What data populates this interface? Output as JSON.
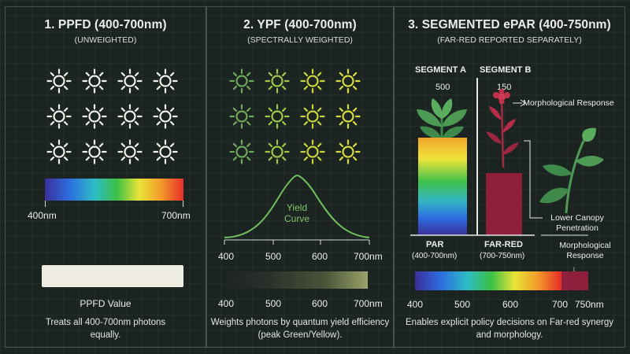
{
  "panel1": {
    "title": "1. PPFD (400-700nm)",
    "subtitle": "(UNWEIGHTED)",
    "bar_start": "400nm",
    "bar_end": "700nm",
    "value_label": "PPFD Value",
    "description": "Treats all 400-700nm photons equally.",
    "icon": "sun-icon",
    "icon_color": "#f2f1ea",
    "spectrum_colors": [
      "#3b2f9a",
      "#2d6fe0",
      "#2dbdc5",
      "#3cbf45",
      "#e9e437",
      "#f29a2a",
      "#e62d27"
    ],
    "value_box_color": "#efece2"
  },
  "panel2": {
    "title": "2. YPF (400-700nm)",
    "subtitle": "(SPECTRALLY WEIGHTED)",
    "curve_label": "Yield Curve",
    "axis_labels": [
      "400",
      "500",
      "600",
      "700nm"
    ],
    "description": "Weights photons by quantum yield efficiency (peak Green/Yellow).",
    "icon": "sun-icon",
    "icon_colors": [
      "#6fa85a",
      "#9ec84a",
      "#c8d63c",
      "#d8dc3c"
    ],
    "curve_color": "#6fbf5d",
    "gradient_colors": [
      "#1e2422",
      "#4a5438",
      "#9aa36a"
    ]
  },
  "panel3": {
    "title": "3. SEGMENTED ePAR (400-750nm)",
    "subtitle": "(FAR-RED REPORTED SEPARATELY)",
    "segment_a": {
      "label": "SEGMENT A",
      "value": "500",
      "name": "PAR",
      "range": "(400-700nm)"
    },
    "segment_b": {
      "label": "SEGMENT B",
      "value": "150",
      "name": "FAR-RED",
      "range": "(700-750nm)"
    },
    "annotations": {
      "morphological": "Morphological Response",
      "canopy": "Lower Canopy Penetration",
      "morphological_bottom": "Morphological Response"
    },
    "axis_labels": [
      "400",
      "500",
      "600",
      "700",
      "750nm"
    ],
    "description": "Enables explicit policy decisions on Far-red synergy and morphology.",
    "far_red_color": "#8e1f3d",
    "plant_color": "#4d9a54",
    "flower_color": "#c0324a"
  }
}
